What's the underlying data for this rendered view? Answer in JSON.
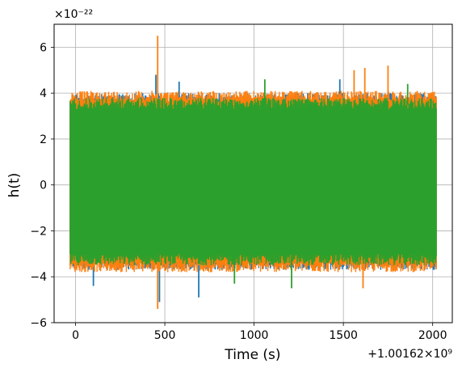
{
  "chart_data": {
    "type": "line",
    "title": "",
    "xlabel": "Time (s)",
    "ylabel": "h(t)",
    "x_offset_label": "+1.00162×10⁹",
    "y_scale_label": "×10⁻²²",
    "xlim": [
      -120,
      2110
    ],
    "ylim": [
      -6,
      7
    ],
    "x_ticks": [
      {
        "value": 0,
        "label": "0"
      },
      {
        "value": 500,
        "label": "500"
      },
      {
        "value": 1000,
        "label": "1000"
      },
      {
        "value": 1500,
        "label": "1500"
      },
      {
        "value": 2000,
        "label": "2000"
      }
    ],
    "y_ticks": [
      {
        "value": -6,
        "label": "−6"
      },
      {
        "value": -4,
        "label": "−4"
      },
      {
        "value": -2,
        "label": "−2"
      },
      {
        "value": 0,
        "label": "0"
      },
      {
        "value": 2,
        "label": "2"
      },
      {
        "value": 4,
        "label": "4"
      },
      {
        "value": 6,
        "label": "6"
      }
    ],
    "grid": true,
    "x_range_data": [
      -30,
      2020
    ],
    "series": [
      {
        "color": "#1f77b4",
        "band": [
          -3.7,
          4.0
        ],
        "spikes": [
          {
            "x": 450,
            "y": 4.8
          },
          {
            "x": 580,
            "y": 4.5
          },
          {
            "x": 1480,
            "y": 4.6
          },
          {
            "x": 470,
            "y": -5.1
          },
          {
            "x": 690,
            "y": -4.9
          },
          {
            "x": 100,
            "y": -4.4
          }
        ]
      },
      {
        "color": "#ff7f0e",
        "band": [
          -3.8,
          4.1
        ],
        "spikes": [
          {
            "x": 460,
            "y": 6.5
          },
          {
            "x": 1620,
            "y": 5.1
          },
          {
            "x": 1750,
            "y": 5.2
          },
          {
            "x": 1560,
            "y": 5.0
          },
          {
            "x": 460,
            "y": -5.4
          },
          {
            "x": 1610,
            "y": -4.5
          }
        ]
      },
      {
        "color": "#2ca02c",
        "band": [
          -3.5,
          3.8
        ],
        "spikes": [
          {
            "x": 1060,
            "y": 4.6
          },
          {
            "x": 1860,
            "y": 4.4
          },
          {
            "x": 1210,
            "y": -4.5
          },
          {
            "x": 890,
            "y": -4.3
          }
        ]
      }
    ]
  }
}
